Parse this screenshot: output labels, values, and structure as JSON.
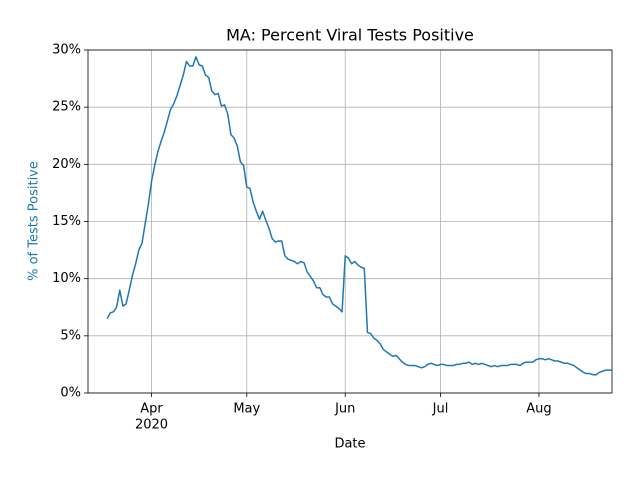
{
  "chart_data": {
    "type": "line",
    "title": "MA: Percent Viral Tests Positive",
    "xlabel": "Date",
    "ylabel": "% of Tests Positive",
    "ylabel_color": "#1f77b4",
    "grid": true,
    "x": [
      "2020-03-18",
      "2020-03-19",
      "2020-03-20",
      "2020-03-21",
      "2020-03-22",
      "2020-03-23",
      "2020-03-24",
      "2020-03-25",
      "2020-03-26",
      "2020-03-27",
      "2020-03-28",
      "2020-03-29",
      "2020-03-30",
      "2020-03-31",
      "2020-04-01",
      "2020-04-02",
      "2020-04-03",
      "2020-04-04",
      "2020-04-05",
      "2020-04-06",
      "2020-04-07",
      "2020-04-08",
      "2020-04-09",
      "2020-04-10",
      "2020-04-11",
      "2020-04-12",
      "2020-04-13",
      "2020-04-14",
      "2020-04-15",
      "2020-04-16",
      "2020-04-17",
      "2020-04-18",
      "2020-04-19",
      "2020-04-20",
      "2020-04-21",
      "2020-04-22",
      "2020-04-23",
      "2020-04-24",
      "2020-04-25",
      "2020-04-26",
      "2020-04-27",
      "2020-04-28",
      "2020-04-29",
      "2020-04-30",
      "2020-05-01",
      "2020-05-02",
      "2020-05-03",
      "2020-05-04",
      "2020-05-05",
      "2020-05-06",
      "2020-05-07",
      "2020-05-08",
      "2020-05-09",
      "2020-05-10",
      "2020-05-11",
      "2020-05-12",
      "2020-05-13",
      "2020-05-14",
      "2020-05-15",
      "2020-05-16",
      "2020-05-17",
      "2020-05-18",
      "2020-05-19",
      "2020-05-20",
      "2020-05-21",
      "2020-05-22",
      "2020-05-23",
      "2020-05-24",
      "2020-05-25",
      "2020-05-26",
      "2020-05-27",
      "2020-05-28",
      "2020-05-29",
      "2020-05-30",
      "2020-05-31",
      "2020-06-01",
      "2020-06-02",
      "2020-06-03",
      "2020-06-04",
      "2020-06-05",
      "2020-06-06",
      "2020-06-07",
      "2020-06-08",
      "2020-06-09",
      "2020-06-10",
      "2020-06-11",
      "2020-06-12",
      "2020-06-13",
      "2020-06-14",
      "2020-06-15",
      "2020-06-16",
      "2020-06-17",
      "2020-06-18",
      "2020-06-19",
      "2020-06-20",
      "2020-06-21",
      "2020-06-22",
      "2020-06-23",
      "2020-06-24",
      "2020-06-25",
      "2020-06-26",
      "2020-06-27",
      "2020-06-28",
      "2020-06-29",
      "2020-06-30",
      "2020-07-01",
      "2020-07-02",
      "2020-07-03",
      "2020-07-04",
      "2020-07-05",
      "2020-07-06",
      "2020-07-07",
      "2020-07-08",
      "2020-07-09",
      "2020-07-10",
      "2020-07-11",
      "2020-07-12",
      "2020-07-13",
      "2020-07-14",
      "2020-07-15",
      "2020-07-16",
      "2020-07-17",
      "2020-07-18",
      "2020-07-19",
      "2020-07-20",
      "2020-07-21",
      "2020-07-22",
      "2020-07-23",
      "2020-07-24",
      "2020-07-25",
      "2020-07-26",
      "2020-07-27",
      "2020-07-28",
      "2020-07-29",
      "2020-07-30",
      "2020-07-31",
      "2020-08-01",
      "2020-08-02",
      "2020-08-03",
      "2020-08-04",
      "2020-08-05",
      "2020-08-06",
      "2020-08-07",
      "2020-08-08",
      "2020-08-09",
      "2020-08-10",
      "2020-08-11",
      "2020-08-12",
      "2020-08-13",
      "2020-08-14",
      "2020-08-15",
      "2020-08-16",
      "2020-08-17",
      "2020-08-18",
      "2020-08-19",
      "2020-08-20",
      "2020-08-21",
      "2020-08-22",
      "2020-08-23",
      "2020-08-24"
    ],
    "series": [
      {
        "color": "#1f77b4",
        "values": [
          6.5,
          7.0,
          7.1,
          7.5,
          9.0,
          7.6,
          7.8,
          9.0,
          10.3,
          11.3,
          12.5,
          13.1,
          14.8,
          16.5,
          18.5,
          19.9,
          21.1,
          22.0,
          22.8,
          23.8,
          24.8,
          25.3,
          26.0,
          26.9,
          27.8,
          29.0,
          28.6,
          28.6,
          29.4,
          28.7,
          28.6,
          27.8,
          27.6,
          26.4,
          26.1,
          26.2,
          25.1,
          25.2,
          24.4,
          22.6,
          22.3,
          21.6,
          20.2,
          19.9,
          18.0,
          17.9,
          16.7,
          15.9,
          15.2,
          15.9,
          15.1,
          14.4,
          13.5,
          13.2,
          13.3,
          13.3,
          12.0,
          11.7,
          11.6,
          11.5,
          11.3,
          11.5,
          11.4,
          10.6,
          10.2,
          9.8,
          9.2,
          9.2,
          8.6,
          8.4,
          8.4,
          7.8,
          7.6,
          7.4,
          7.1,
          12.0,
          11.8,
          11.3,
          11.5,
          11.2,
          11.0,
          10.9,
          5.3,
          5.2,
          4.8,
          4.6,
          4.3,
          3.8,
          3.6,
          3.4,
          3.2,
          3.3,
          3.0,
          2.7,
          2.5,
          2.4,
          2.4,
          2.4,
          2.3,
          2.2,
          2.3,
          2.5,
          2.6,
          2.5,
          2.4,
          2.5,
          2.5,
          2.4,
          2.4,
          2.4,
          2.5,
          2.5,
          2.6,
          2.6,
          2.7,
          2.5,
          2.6,
          2.5,
          2.6,
          2.5,
          2.4,
          2.3,
          2.4,
          2.3,
          2.4,
          2.4,
          2.4,
          2.5,
          2.5,
          2.5,
          2.4,
          2.6,
          2.7,
          2.7,
          2.7,
          2.9,
          3.0,
          3.0,
          2.9,
          3.0,
          2.9,
          2.8,
          2.8,
          2.7,
          2.6,
          2.6,
          2.5,
          2.4,
          2.2,
          2.0,
          1.8,
          1.7,
          1.7,
          1.6,
          1.6,
          1.8,
          1.9,
          2.0,
          2.0,
          2.0
        ]
      }
    ],
    "xlim": [
      "2020-03-12",
      "2020-08-24"
    ],
    "xticks": [
      {
        "value": "2020-04-01",
        "label": "Apr",
        "year": "2020"
      },
      {
        "value": "2020-05-01",
        "label": "May"
      },
      {
        "value": "2020-06-01",
        "label": "Jun"
      },
      {
        "value": "2020-07-01",
        "label": "Jul"
      },
      {
        "value": "2020-08-01",
        "label": "Aug"
      }
    ],
    "ylim": [
      0,
      30
    ],
    "yticks": [
      {
        "value": 0,
        "label": "0%"
      },
      {
        "value": 5,
        "label": "5%"
      },
      {
        "value": 10,
        "label": "10%"
      },
      {
        "value": 15,
        "label": "15%"
      },
      {
        "value": 20,
        "label": "20%"
      },
      {
        "value": 25,
        "label": "25%"
      },
      {
        "value": 30,
        "label": "30%"
      }
    ]
  }
}
